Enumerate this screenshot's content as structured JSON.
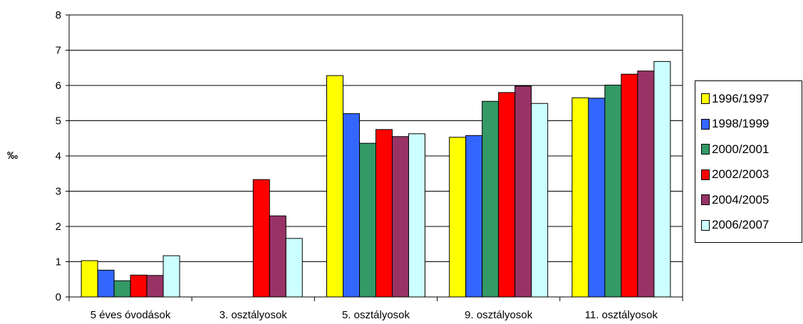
{
  "chart_data": {
    "type": "bar",
    "title": "",
    "xlabel": "",
    "ylabel": "‰",
    "ylim": [
      0,
      8
    ],
    "yticks": [
      "0",
      "1",
      "2",
      "3",
      "4",
      "5",
      "6",
      "7",
      "8"
    ],
    "grid": true,
    "legend_position": "right",
    "categories": [
      "5 éves óvodások",
      "3. osztályosok",
      "5. osztályosok",
      "9. osztályosok",
      "11. osztályosok"
    ],
    "series": [
      {
        "name": "1996/1997",
        "color": "#FFFF00",
        "values": [
          1.03,
          0,
          6.28,
          4.53,
          5.65
        ]
      },
      {
        "name": "1998/1999",
        "color": "#3366FF",
        "values": [
          0.76,
          0,
          5.2,
          4.58,
          5.64
        ]
      },
      {
        "name": "2000/2001",
        "color": "#339966",
        "values": [
          0.46,
          0,
          4.36,
          5.55,
          6.01
        ]
      },
      {
        "name": "2002/2003",
        "color": "#FF0000",
        "values": [
          0.62,
          3.33,
          4.75,
          5.8,
          6.32
        ]
      },
      {
        "name": "2004/2005",
        "color": "#993366",
        "values": [
          0.61,
          2.3,
          4.55,
          5.98,
          6.41
        ]
      },
      {
        "name": "2006/2007",
        "color": "#CCFFFF",
        "values": [
          1.17,
          1.66,
          4.63,
          5.49,
          6.68
        ]
      }
    ]
  }
}
